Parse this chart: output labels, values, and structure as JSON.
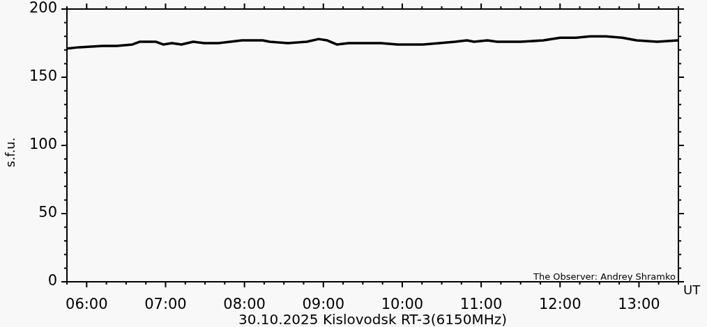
{
  "chart_data": {
    "type": "line",
    "title": "30.10.2025 Kislovodsk RT-3(6150MHz)",
    "xlabel": "UT",
    "ylabel": "s.f.u.",
    "annotations": [
      "The Observer: Andrey Shramko"
    ],
    "color": "#000000",
    "x": [
      5.75,
      5.91,
      6.2,
      6.38,
      6.58,
      6.67,
      6.79,
      6.88,
      6.97,
      7.08,
      7.2,
      7.35,
      7.49,
      7.67,
      7.82,
      7.97,
      8.11,
      8.23,
      8.32,
      8.55,
      8.79,
      8.94,
      9.05,
      9.17,
      9.32,
      9.5,
      9.73,
      9.94,
      10.14,
      10.26,
      10.47,
      10.67,
      10.82,
      10.91,
      11.08,
      11.2,
      11.5,
      11.79,
      12.0,
      12.2,
      12.38,
      12.58,
      12.79,
      12.97,
      13.23,
      13.5
    ],
    "values": [
      171,
      172,
      173,
      173,
      174,
      176,
      176,
      176,
      174,
      175,
      174,
      176,
      175,
      175,
      176,
      177,
      177,
      177,
      176,
      175,
      176,
      178,
      177,
      174,
      175,
      175,
      175,
      174,
      174,
      174,
      175,
      176,
      177,
      176,
      177,
      176,
      176,
      177,
      179,
      179,
      180,
      180,
      179,
      177,
      176,
      177
    ],
    "xlim": [
      5.75,
      13.5
    ],
    "xticks": [
      {
        "value": 5.75,
        "label": null
      },
      {
        "value": 6,
        "label": "06:00"
      },
      {
        "value": 6.25,
        "label": null
      },
      {
        "value": 6.5,
        "label": null
      },
      {
        "value": 6.75,
        "label": null
      },
      {
        "value": 7,
        "label": "07:00"
      },
      {
        "value": 7.25,
        "label": null
      },
      {
        "value": 7.5,
        "label": null
      },
      {
        "value": 7.75,
        "label": null
      },
      {
        "value": 8,
        "label": "08:00"
      },
      {
        "value": 8.25,
        "label": null
      },
      {
        "value": 8.5,
        "label": null
      },
      {
        "value": 8.75,
        "label": null
      },
      {
        "value": 9,
        "label": "09:00"
      },
      {
        "value": 9.25,
        "label": null
      },
      {
        "value": 9.5,
        "label": null
      },
      {
        "value": 9.75,
        "label": null
      },
      {
        "value": 10,
        "label": "10:00"
      },
      {
        "value": 10.25,
        "label": null
      },
      {
        "value": 10.5,
        "label": null
      },
      {
        "value": 10.75,
        "label": null
      },
      {
        "value": 11,
        "label": "11:00"
      },
      {
        "value": 11.25,
        "label": null
      },
      {
        "value": 11.5,
        "label": null
      },
      {
        "value": 11.75,
        "label": null
      },
      {
        "value": 12,
        "label": "12:00"
      },
      {
        "value": 12.25,
        "label": null
      },
      {
        "value": 12.5,
        "label": null
      },
      {
        "value": 12.75,
        "label": null
      },
      {
        "value": 13,
        "label": "13:00"
      },
      {
        "value": 13.25,
        "label": null
      },
      {
        "value": 13.5,
        "label": null
      }
    ],
    "ylim": [
      0,
      200
    ],
    "yticks": [
      0,
      {
        "value": 10,
        "label": null
      },
      {
        "value": 20,
        "label": null
      },
      {
        "value": 30,
        "label": null
      },
      {
        "value": 40,
        "label": null
      },
      50,
      {
        "value": 60,
        "label": null
      },
      {
        "value": 70,
        "label": null
      },
      {
        "value": 80,
        "label": null
      },
      {
        "value": 90,
        "label": null
      },
      100,
      {
        "value": 110,
        "label": null
      },
      {
        "value": 120,
        "label": null
      },
      {
        "value": 130,
        "label": null
      },
      {
        "value": 140,
        "label": null
      },
      150,
      {
        "value": 160,
        "label": null
      },
      {
        "value": 170,
        "label": null
      },
      {
        "value": 180,
        "label": null
      },
      {
        "value": 190,
        "label": null
      },
      200
    ]
  }
}
